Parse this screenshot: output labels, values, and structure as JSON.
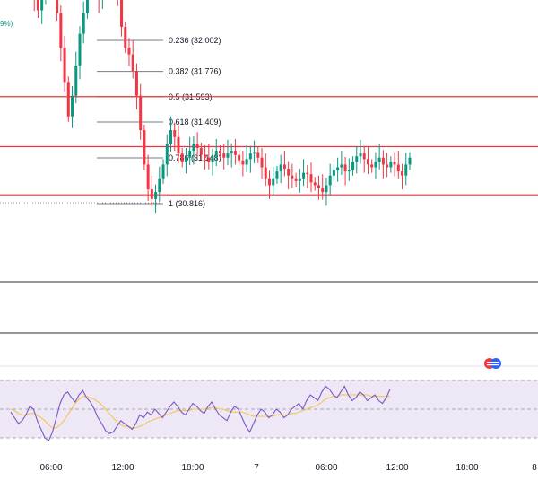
{
  "corner_label": "9%)",
  "colors": {
    "up": "#089981",
    "down": "#f23645",
    "rsi_line": "#7e57c2",
    "rsi_ma": "#f5c342",
    "rsi_band_fill": "#ede7f6",
    "hline": "#e53935",
    "fib_line": "#787b86",
    "separator": "#2a2e39"
  },
  "chart_data": [
    {
      "type": "candlestick",
      "title": "",
      "fibonacci": [
        {
          "level": "0.236",
          "price": 32.002,
          "label": "0.236 (32.002)"
        },
        {
          "level": "0.382",
          "price": 31.776,
          "label": "0.382 (31.776)"
        },
        {
          "level": "0.5",
          "price": 31.593,
          "label": "0.5 (31.593)"
        },
        {
          "level": "0.618",
          "price": 31.409,
          "label": "0.618 (31.409)"
        },
        {
          "level": "0.786",
          "price": 31.148,
          "label": "0.786 (31.148)"
        },
        {
          "level": "1",
          "price": 30.816,
          "label": "1 (30.816)"
        }
      ],
      "horizontal_lines": [
        31.593,
        31.23,
        30.88
      ],
      "series_close": [
        32.42,
        32.3,
        32.22,
        32.33,
        32.45,
        32.5,
        32.38,
        32.2,
        31.95,
        31.7,
        31.45,
        31.6,
        31.82,
        32.05,
        32.2,
        32.38,
        32.45,
        32.38,
        32.3,
        32.4,
        32.5,
        32.48,
        32.4,
        32.35,
        32.1,
        31.95,
        31.9,
        31.78,
        31.6,
        31.35,
        31.1,
        30.92,
        30.85,
        30.9,
        31.0,
        31.1,
        31.25,
        31.35,
        31.3,
        31.18,
        31.12,
        31.15,
        31.2,
        31.25,
        31.22,
        31.17,
        31.15,
        31.12,
        31.16,
        31.2,
        31.18,
        31.15,
        31.18,
        31.2,
        31.17,
        31.13,
        31.1,
        31.14,
        31.18,
        31.19,
        31.15,
        31.08,
        31.0,
        30.95,
        31.0,
        31.05,
        31.1,
        31.07,
        31.02,
        31.0,
        30.98,
        31.0,
        31.04,
        31.03,
        30.97,
        30.95,
        30.93,
        30.9,
        30.95,
        31.02,
        31.06,
        31.08,
        31.1,
        31.05,
        31.06,
        31.12,
        31.16,
        31.18,
        31.14,
        31.1,
        31.08,
        31.12,
        31.15,
        31.1,
        31.08,
        31.12,
        31.1,
        31.05,
        31.02,
        31.1,
        31.15
      ]
    },
    {
      "type": "line",
      "title": "",
      "bands": {
        "upper": 70,
        "middle": 50,
        "lower": 30,
        "ylim": [
          20,
          80
        ]
      },
      "series": [
        {
          "values": [
            48,
            44,
            40,
            42,
            46,
            52,
            50,
            42,
            36,
            30,
            28,
            34,
            44,
            54,
            60,
            62,
            58,
            55,
            60,
            63,
            58,
            55,
            50,
            44,
            40,
            35,
            33,
            34,
            38,
            42,
            40,
            38,
            36,
            40,
            46,
            44,
            48,
            46,
            50,
            47,
            44,
            48,
            52,
            55,
            52,
            48,
            46,
            50,
            54,
            52,
            49,
            47,
            52,
            55,
            50,
            46,
            44,
            42,
            48,
            52,
            50,
            44,
            38,
            34,
            40,
            46,
            50,
            48,
            44,
            46,
            50,
            48,
            44,
            46,
            50,
            52,
            54,
            50,
            56,
            60,
            58,
            56,
            62,
            66,
            64,
            60,
            58,
            62,
            66,
            60,
            56,
            58,
            62,
            60,
            56,
            58,
            60,
            56,
            54,
            58,
            64
          ]
        },
        {
          "values": [
            50,
            49,
            47,
            46,
            46,
            47,
            47,
            46,
            44,
            42,
            39,
            37,
            37,
            39,
            42,
            46,
            50,
            54,
            57,
            59,
            59,
            58,
            57,
            55,
            53,
            50,
            47,
            44,
            41,
            39,
            38,
            38,
            37,
            37,
            38,
            39,
            41,
            42,
            43,
            44,
            45,
            46,
            47,
            48,
            49,
            49,
            49,
            49,
            50,
            50,
            50,
            50,
            51,
            51,
            51,
            50,
            50,
            49,
            48,
            48,
            48,
            48,
            47,
            46,
            45,
            45,
            45,
            45,
            45,
            45,
            46,
            46,
            46,
            46,
            47,
            47,
            48,
            49,
            50,
            51,
            52,
            53,
            55,
            57,
            58,
            59,
            59,
            60,
            60,
            60,
            60,
            60,
            60,
            60,
            60,
            59,
            59,
            59,
            59,
            59,
            59
          ]
        }
      ]
    }
  ],
  "time_axis": {
    "labels": [
      "06:00",
      "12:00",
      "18:00",
      "7",
      "06:00",
      "12:00",
      "18:00",
      "8"
    ]
  }
}
